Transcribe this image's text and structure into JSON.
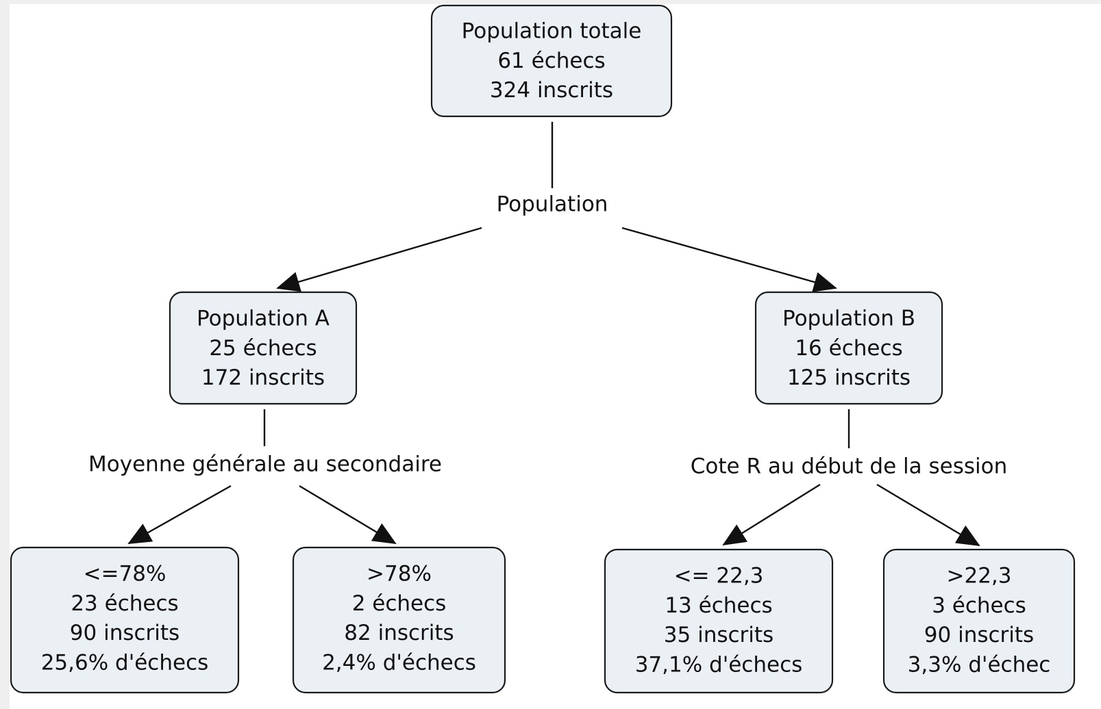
{
  "nodes": [
    {
      "lines": [
        "Population totale",
        "61 échecs",
        "324 inscrits"
      ]
    },
    {
      "lines": [
        "Population A",
        "25 échecs",
        "172 inscrits"
      ]
    },
    {
      "lines": [
        "Population B",
        "16 échecs",
        "125 inscrits"
      ]
    },
    {
      "lines": [
        "<=78%",
        "23 échecs",
        "90 inscrits",
        "25,6% d'échecs"
      ]
    },
    {
      "lines": [
        ">78%",
        "2 échecs",
        "82 inscrits",
        "2,4% d'échecs"
      ]
    },
    {
      "lines": [
        "<= 22,3",
        "13 échecs",
        "35 inscrits",
        "37,1% d'échecs"
      ]
    },
    {
      "lines": [
        ">22,3",
        "3 échecs",
        "90 inscrits",
        "3,3% d'échec"
      ]
    }
  ],
  "edge_labels": [
    "Population",
    "Moyenne générale au secondaire",
    "Cote R au début de la session"
  ]
}
